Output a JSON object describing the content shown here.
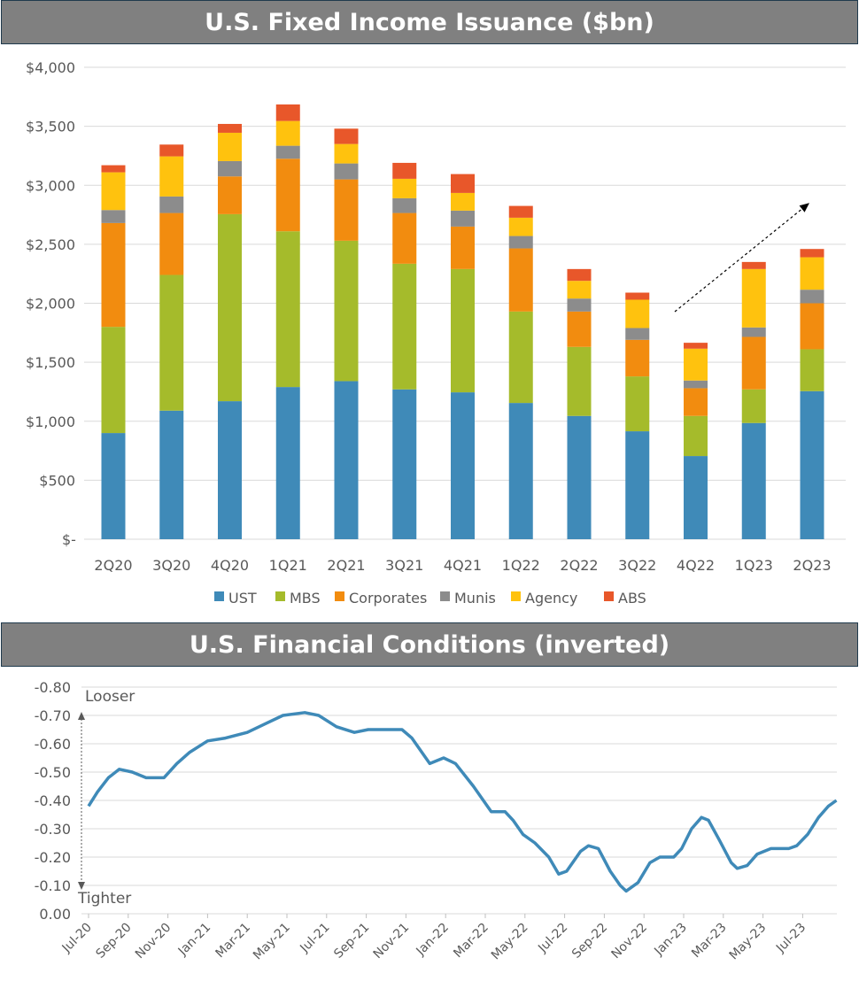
{
  "chart_data": [
    {
      "type": "bar",
      "stacked": true,
      "title": "U.S. Fixed Income Issuance ($bn)",
      "categories": [
        "2Q20",
        "3Q20",
        "4Q20",
        "1Q21",
        "2Q21",
        "3Q21",
        "4Q21",
        "1Q22",
        "2Q22",
        "3Q22",
        "4Q22",
        "1Q23",
        "2Q23"
      ],
      "series": [
        {
          "name": "UST",
          "color": "#3f8ab8",
          "values": [
            900,
            1090,
            1170,
            1290,
            1340,
            1270,
            1245,
            1155,
            1045,
            915,
            705,
            985,
            1255
          ]
        },
        {
          "name": "MBS",
          "color": "#a5bb2b",
          "values": [
            900,
            1150,
            1585,
            1320,
            1190,
            1065,
            1045,
            775,
            585,
            465,
            340,
            285,
            355
          ]
        },
        {
          "name": "Corporates",
          "color": "#f28c0f",
          "values": [
            880,
            525,
            320,
            615,
            520,
            430,
            360,
            535,
            300,
            310,
            235,
            445,
            390
          ]
        },
        {
          "name": "Munis",
          "color": "#8c8c8c",
          "values": [
            110,
            140,
            130,
            110,
            135,
            125,
            135,
            105,
            110,
            100,
            65,
            80,
            115
          ]
        },
        {
          "name": "Agency",
          "color": "#ffc20e",
          "values": [
            320,
            340,
            240,
            210,
            165,
            165,
            150,
            155,
            150,
            240,
            270,
            495,
            275
          ]
        },
        {
          "name": "ABS",
          "color": "#e8572a",
          "values": [
            60,
            100,
            75,
            140,
            130,
            135,
            160,
            100,
            100,
            60,
            50,
            60,
            70
          ]
        }
      ],
      "ylim": [
        0,
        4000
      ],
      "yticks": [
        0,
        500,
        1000,
        1500,
        2000,
        2500,
        3000,
        3500,
        4000
      ],
      "ytick_labels": [
        "$-",
        "$500",
        "$1,000",
        "$1,500",
        "$2,000",
        "$2,500",
        "$3,000",
        "$3,500",
        "$4,000"
      ],
      "grid": true,
      "legend": "bottom",
      "annotation": "dashed up-trend arrow from 3Q22 to 2Q23"
    },
    {
      "type": "line",
      "title": "U.S. Financial Conditions (inverted)",
      "x_unit": "months since Jul-20",
      "x": [
        0,
        0.45,
        1.0,
        1.55,
        2.2,
        2.9,
        3.8,
        4.45,
        5.1,
        6.0,
        6.9,
        8.0,
        8.9,
        9.8,
        10.9,
        11.6,
        12.5,
        13.4,
        14.1,
        15.8,
        16.3,
        17.2,
        17.9,
        18.5,
        19.4,
        20.3,
        21.0,
        21.4,
        21.9,
        22.5,
        23.2,
        23.7,
        24.1,
        24.8,
        25.2,
        25.7,
        26.3,
        26.8,
        27.1,
        27.7,
        28.3,
        28.8,
        29.5,
        29.9,
        30.4,
        30.9,
        31.25,
        31.8,
        32.4,
        32.7,
        33.2,
        33.7,
        34.4,
        35.3,
        35.7,
        36.25,
        36.8,
        37.3,
        37.7
      ],
      "y": [
        -0.38,
        -0.43,
        -0.48,
        -0.51,
        -0.5,
        -0.48,
        -0.48,
        -0.53,
        -0.57,
        -0.61,
        -0.62,
        -0.64,
        -0.67,
        -0.7,
        -0.71,
        -0.7,
        -0.66,
        -0.64,
        -0.65,
        -0.65,
        -0.62,
        -0.53,
        -0.55,
        -0.53,
        -0.45,
        -0.36,
        -0.36,
        -0.33,
        -0.28,
        -0.25,
        -0.2,
        -0.14,
        -0.15,
        -0.22,
        -0.24,
        -0.23,
        -0.15,
        -0.1,
        -0.08,
        -0.11,
        -0.18,
        -0.2,
        -0.2,
        -0.23,
        -0.3,
        -0.34,
        -0.33,
        -0.26,
        -0.18,
        -0.16,
        -0.17,
        -0.21,
        -0.23,
        -0.23,
        -0.24,
        -0.28,
        -0.34,
        -0.38,
        -0.4
      ],
      "color": "#3f8ab8",
      "ylim": [
        -0.8,
        0
      ],
      "y_inverted": true,
      "yticks": [
        0,
        -0.1,
        -0.2,
        -0.3,
        -0.4,
        -0.5,
        -0.6,
        -0.7,
        -0.8
      ],
      "ytick_labels": [
        "0.00",
        "-0.10",
        "-0.20",
        "-0.30",
        "-0.40",
        "-0.50",
        "-0.60",
        "-0.70",
        "-0.80"
      ],
      "xtick_labels": [
        "Jul-20",
        "Sep-20",
        "Nov-20",
        "Jan-21",
        "Mar-21",
        "May-21",
        "Jul-21",
        "Sep-21",
        "Nov-21",
        "Jan-22",
        "Mar-22",
        "May-22",
        "Jul-22",
        "Sep-22",
        "Nov-22",
        "Jan-23",
        "Mar-23",
        "May-23",
        "Jul-23"
      ],
      "annotations": {
        "top": "Looser",
        "bottom": "Tighter"
      },
      "grid": true
    }
  ]
}
